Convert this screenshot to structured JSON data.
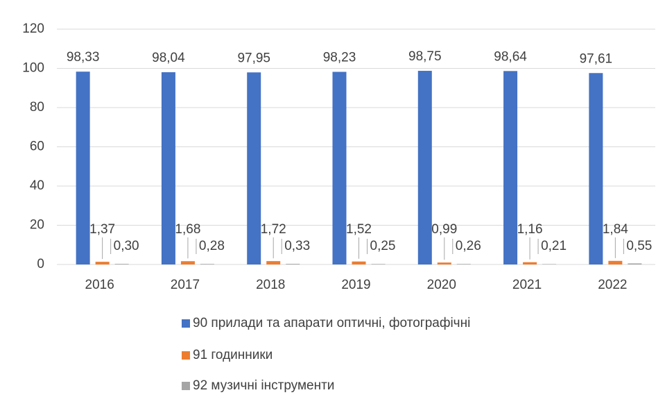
{
  "chart_data": {
    "type": "bar",
    "categories": [
      "2016",
      "2017",
      "2018",
      "2019",
      "2020",
      "2021",
      "2022"
    ],
    "series": [
      {
        "name": "90 прилади та апарати оптичні, фотографічні",
        "color": "#4472c4",
        "values": [
          98.33,
          98.04,
          97.95,
          98.23,
          98.75,
          98.64,
          97.61
        ],
        "value_labels": [
          "98,33",
          "98,04",
          "97,95",
          "98,23",
          "98,75",
          "98,64",
          "97,61"
        ]
      },
      {
        "name": "91 годинники",
        "color": "#ed7d31",
        "values": [
          1.37,
          1.68,
          1.72,
          1.52,
          0.99,
          1.16,
          1.84
        ],
        "value_labels": [
          "1,37",
          "1,68",
          "1,72",
          "1,52",
          "0,99",
          "1,16",
          "1,84"
        ]
      },
      {
        "name": "92 музичні інструменти",
        "color": "#a5a5a5",
        "values": [
          0.3,
          0.28,
          0.33,
          0.25,
          0.26,
          0.21,
          0.55
        ],
        "value_labels": [
          "0,30",
          "0,28",
          "0,33",
          "0,25",
          "0,26",
          "0,21",
          "0,55"
        ]
      }
    ],
    "ylim": [
      0,
      120
    ],
    "yticks": [
      0,
      20,
      40,
      60,
      80,
      100,
      120
    ],
    "grid": true
  }
}
